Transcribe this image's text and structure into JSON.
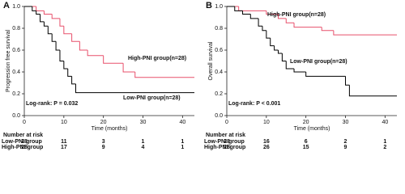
{
  "chart_data": [
    {
      "type": "line",
      "drawstyle": "steps-post",
      "panel_label": "A",
      "xlabel": "Time (months)",
      "ylabel": "Progression free survival",
      "xlim": [
        0,
        43
      ],
      "xticks": [
        0,
        10,
        20,
        30,
        40
      ],
      "ylim": [
        0,
        1
      ],
      "yticks": [
        {
          "value": 0,
          "label": "0.0"
        },
        {
          "value": 0.2,
          "label": "0.2"
        },
        {
          "value": 0.4,
          "label": "0.4"
        },
        {
          "value": 0.6,
          "label": "0.6"
        },
        {
          "value": 0.8,
          "label": "0.8"
        },
        {
          "value": 1,
          "label": "1.0"
        }
      ],
      "series": [
        {
          "name": "High-PNI group(n=28)",
          "color": "#e8506b",
          "x": [
            0,
            3,
            5,
            7,
            9,
            10,
            12,
            14,
            16,
            20,
            25,
            28,
            43
          ],
          "values": [
            1,
            0.96,
            0.93,
            0.89,
            0.82,
            0.75,
            0.68,
            0.6,
            0.55,
            0.48,
            0.4,
            0.35,
            0.35
          ]
        },
        {
          "name": "Low-PNI group(n=28)",
          "color": "#000000",
          "x": [
            0,
            2,
            3,
            4,
            5,
            6,
            7,
            8,
            9,
            10,
            11,
            12,
            13,
            43
          ],
          "values": [
            1,
            0.96,
            0.93,
            0.86,
            0.82,
            0.75,
            0.68,
            0.6,
            0.5,
            0.43,
            0.36,
            0.29,
            0.21,
            0.21
          ]
        }
      ],
      "annotations": [
        "Log-rank: P = 0.032"
      ],
      "risk_table": {
        "title": "Number at risk",
        "rows": [
          {
            "name": "Low-PNI group",
            "values": [
              28,
              11,
              3,
              1,
              1
            ]
          },
          {
            "name": "High-PNI group",
            "values": [
              28,
              17,
              9,
              4,
              1
            ]
          }
        ]
      }
    },
    {
      "type": "line",
      "drawstyle": "steps-post",
      "panel_label": "B",
      "xlabel": "Time (months)",
      "ylabel": "Overall survival",
      "xlim": [
        0,
        43
      ],
      "xticks": [
        0,
        10,
        20,
        30,
        40
      ],
      "ylim": [
        0,
        1
      ],
      "yticks": [
        {
          "value": 0,
          "label": "0.0"
        },
        {
          "value": 0.2,
          "label": "0.2"
        },
        {
          "value": 0.4,
          "label": "0.4"
        },
        {
          "value": 0.6,
          "label": "0.6"
        },
        {
          "value": 0.8,
          "label": "0.8"
        },
        {
          "value": 1,
          "label": "1.0"
        }
      ],
      "series": [
        {
          "name": "High-PNI group(n=28)",
          "color": "#e8506b",
          "x": [
            0,
            3,
            10,
            13,
            15,
            17,
            24,
            27,
            43
          ],
          "values": [
            1,
            0.96,
            0.93,
            0.89,
            0.85,
            0.81,
            0.78,
            0.74,
            0.74
          ]
        },
        {
          "name": "Low-PNI group(n=28)",
          "color": "#000000",
          "x": [
            0,
            2,
            4,
            6,
            8,
            9,
            10,
            11,
            12,
            13,
            14,
            15,
            17,
            20,
            30,
            31,
            43
          ],
          "values": [
            1,
            0.96,
            0.93,
            0.89,
            0.82,
            0.78,
            0.71,
            0.64,
            0.6,
            0.57,
            0.5,
            0.43,
            0.4,
            0.36,
            0.28,
            0.18,
            0.18
          ]
        }
      ],
      "annotations": [
        "Log-rank: P < 0.001"
      ],
      "risk_table": {
        "title": "Number at risk",
        "rows": [
          {
            "name": "Low-PNI group",
            "values": [
              28,
              16,
              6,
              2,
              1
            ]
          },
          {
            "name": "High-PNI group",
            "values": [
              28,
              26,
              15,
              9,
              2
            ]
          }
        ]
      }
    }
  ]
}
